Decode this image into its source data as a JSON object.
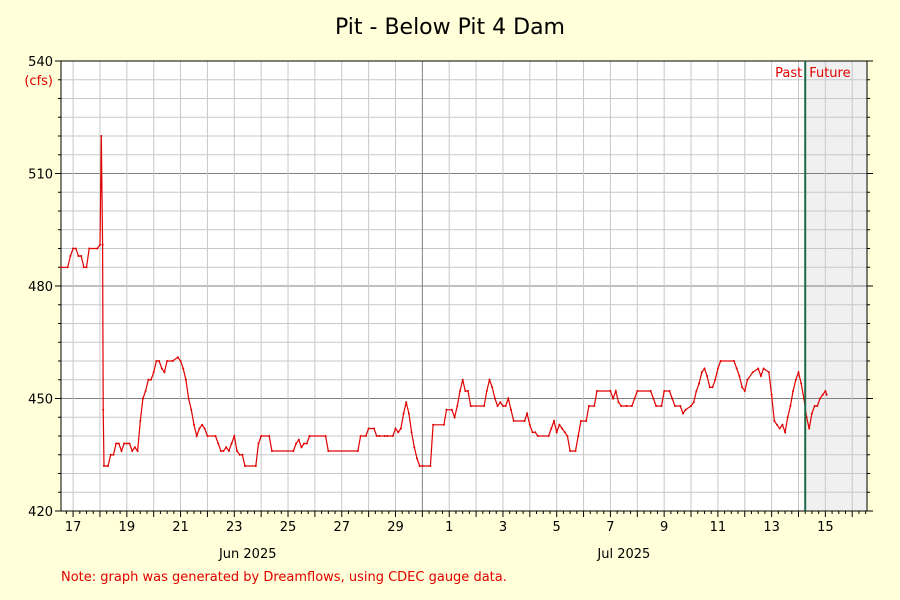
{
  "chart_data": {
    "type": "line",
    "title": "Pit - Below Pit 4 Dam",
    "ylabel": "(cfs)",
    "ylim": [
      420,
      540
    ],
    "yticks": [
      420,
      450,
      480,
      510,
      540
    ],
    "x_unit": "days since 2025-06-16 00:00",
    "xlim": [
      16.55,
      46.55
    ],
    "day_ticks": [
      {
        "label": "17",
        "x": 17
      },
      {
        "label": "19",
        "x": 19
      },
      {
        "label": "21",
        "x": 21
      },
      {
        "label": "23",
        "x": 23
      },
      {
        "label": "25",
        "x": 25
      },
      {
        "label": "27",
        "x": 27
      },
      {
        "label": "29",
        "x": 29
      },
      {
        "label": "1",
        "x": 31
      },
      {
        "label": "3",
        "x": 33
      },
      {
        "label": "5",
        "x": 35
      },
      {
        "label": "7",
        "x": 37
      },
      {
        "label": "9",
        "x": 39
      },
      {
        "label": "11",
        "x": 41
      },
      {
        "label": "13",
        "x": 43
      },
      {
        "label": "15",
        "x": 45
      }
    ],
    "month_labels": [
      {
        "label": "Jun 2025",
        "x": 23.5
      },
      {
        "label": "Jul 2025",
        "x": 37.5
      }
    ],
    "month_boundary_x": 30.0,
    "now_x": 44.25,
    "past_label": "Past",
    "future_label": "Future",
    "grid": true,
    "color": "#e00000",
    "series": [
      {
        "color": "#e00000",
        "points": [
          [
            16.55,
            485
          ],
          [
            16.8,
            485
          ],
          [
            16.9,
            488
          ],
          [
            17.0,
            490
          ],
          [
            17.1,
            490
          ],
          [
            17.2,
            488
          ],
          [
            17.3,
            488
          ],
          [
            17.4,
            485
          ],
          [
            17.5,
            485
          ],
          [
            17.6,
            490
          ],
          [
            17.9,
            490
          ],
          [
            18.0,
            491
          ],
          [
            18.05,
            520
          ],
          [
            18.1,
            491
          ],
          [
            18.12,
            447
          ],
          [
            18.15,
            432
          ],
          [
            18.3,
            432
          ],
          [
            18.4,
            435
          ],
          [
            18.5,
            435
          ],
          [
            18.6,
            438
          ],
          [
            18.7,
            438
          ],
          [
            18.8,
            436
          ],
          [
            18.9,
            438
          ],
          [
            19.0,
            438
          ],
          [
            19.1,
            438
          ],
          [
            19.2,
            436
          ],
          [
            19.3,
            437
          ],
          [
            19.4,
            436
          ],
          [
            19.5,
            444
          ],
          [
            19.6,
            450
          ],
          [
            19.7,
            452
          ],
          [
            19.8,
            455
          ],
          [
            19.9,
            455
          ],
          [
            20.0,
            457
          ],
          [
            20.1,
            460
          ],
          [
            20.2,
            460
          ],
          [
            20.3,
            458
          ],
          [
            20.4,
            457
          ],
          [
            20.5,
            460
          ],
          [
            20.7,
            460
          ],
          [
            20.9,
            461
          ],
          [
            21.0,
            460
          ],
          [
            21.1,
            458
          ],
          [
            21.2,
            455
          ],
          [
            21.3,
            450
          ],
          [
            21.4,
            447
          ],
          [
            21.5,
            443
          ],
          [
            21.6,
            440
          ],
          [
            21.7,
            442
          ],
          [
            21.8,
            443
          ],
          [
            21.9,
            442
          ],
          [
            22.0,
            440
          ],
          [
            22.3,
            440
          ],
          [
            22.4,
            438
          ],
          [
            22.5,
            436
          ],
          [
            22.6,
            436
          ],
          [
            22.7,
            437
          ],
          [
            22.8,
            436
          ],
          [
            22.9,
            438
          ],
          [
            23.0,
            440
          ],
          [
            23.1,
            436
          ],
          [
            23.2,
            435
          ],
          [
            23.3,
            435
          ],
          [
            23.4,
            432
          ],
          [
            23.8,
            432
          ],
          [
            23.9,
            438
          ],
          [
            24.0,
            440
          ],
          [
            24.3,
            440
          ],
          [
            24.4,
            436
          ],
          [
            25.2,
            436
          ],
          [
            25.3,
            438
          ],
          [
            25.4,
            439
          ],
          [
            25.5,
            437
          ],
          [
            25.6,
            438
          ],
          [
            25.7,
            438
          ],
          [
            25.8,
            440
          ],
          [
            26.4,
            440
          ],
          [
            26.5,
            436
          ],
          [
            27.6,
            436
          ],
          [
            27.7,
            440
          ],
          [
            27.9,
            440
          ],
          [
            28.0,
            442
          ],
          [
            28.2,
            442
          ],
          [
            28.3,
            440
          ],
          [
            28.4,
            440
          ],
          [
            28.6,
            440
          ],
          [
            28.7,
            440
          ],
          [
            28.9,
            440
          ],
          [
            29.0,
            442
          ],
          [
            29.1,
            441
          ],
          [
            29.2,
            442
          ],
          [
            29.3,
            446
          ],
          [
            29.4,
            449
          ],
          [
            29.5,
            446
          ],
          [
            29.6,
            441
          ],
          [
            29.7,
            437
          ],
          [
            29.8,
            434
          ],
          [
            29.9,
            432
          ],
          [
            30.0,
            432
          ],
          [
            30.3,
            432
          ],
          [
            30.4,
            443
          ],
          [
            30.8,
            443
          ],
          [
            30.9,
            447
          ],
          [
            31.1,
            447
          ],
          [
            31.2,
            445
          ],
          [
            31.3,
            448
          ],
          [
            31.4,
            452
          ],
          [
            31.5,
            455
          ],
          [
            31.6,
            452
          ],
          [
            31.7,
            452
          ],
          [
            31.8,
            448
          ],
          [
            32.3,
            448
          ],
          [
            32.4,
            452
          ],
          [
            32.5,
            455
          ],
          [
            32.6,
            453
          ],
          [
            32.7,
            450
          ],
          [
            32.8,
            448
          ],
          [
            32.9,
            449
          ],
          [
            33.0,
            448
          ],
          [
            33.1,
            448
          ],
          [
            33.2,
            450
          ],
          [
            33.3,
            447
          ],
          [
            33.4,
            444
          ],
          [
            33.8,
            444
          ],
          [
            33.9,
            446
          ],
          [
            34.0,
            443
          ],
          [
            34.1,
            441
          ],
          [
            34.2,
            441
          ],
          [
            34.3,
            440
          ],
          [
            34.7,
            440
          ],
          [
            34.8,
            442
          ],
          [
            34.9,
            444
          ],
          [
            35.0,
            441
          ],
          [
            35.1,
            443
          ],
          [
            35.2,
            442
          ],
          [
            35.3,
            441
          ],
          [
            35.4,
            440
          ],
          [
            35.5,
            436
          ],
          [
            35.7,
            436
          ],
          [
            35.8,
            440
          ],
          [
            35.9,
            444
          ],
          [
            36.1,
            444
          ],
          [
            36.2,
            448
          ],
          [
            36.4,
            448
          ],
          [
            36.5,
            452
          ],
          [
            37.0,
            452
          ],
          [
            37.1,
            450
          ],
          [
            37.2,
            452
          ],
          [
            37.3,
            449
          ],
          [
            37.4,
            448
          ],
          [
            37.6,
            448
          ],
          [
            37.8,
            448
          ],
          [
            37.9,
            450
          ],
          [
            38.0,
            452
          ],
          [
            38.5,
            452
          ],
          [
            38.6,
            450
          ],
          [
            38.7,
            448
          ],
          [
            38.9,
            448
          ],
          [
            39.0,
            452
          ],
          [
            39.2,
            452
          ],
          [
            39.3,
            450
          ],
          [
            39.4,
            448
          ],
          [
            39.6,
            448
          ],
          [
            39.7,
            446
          ],
          [
            39.8,
            447
          ],
          [
            40.0,
            448
          ],
          [
            40.1,
            449
          ],
          [
            40.2,
            452
          ],
          [
            40.3,
            454
          ],
          [
            40.4,
            457
          ],
          [
            40.5,
            458
          ],
          [
            40.6,
            456
          ],
          [
            40.7,
            453
          ],
          [
            40.8,
            453
          ],
          [
            40.9,
            455
          ],
          [
            41.0,
            458
          ],
          [
            41.1,
            460
          ],
          [
            41.6,
            460
          ],
          [
            41.7,
            458
          ],
          [
            41.8,
            456
          ],
          [
            41.9,
            453
          ],
          [
            42.0,
            452
          ],
          [
            42.1,
            455
          ],
          [
            42.3,
            457
          ],
          [
            42.5,
            458
          ],
          [
            42.6,
            456
          ],
          [
            42.7,
            458
          ],
          [
            42.9,
            457
          ],
          [
            43.0,
            451
          ],
          [
            43.1,
            444
          ],
          [
            43.2,
            443
          ],
          [
            43.3,
            442
          ],
          [
            43.4,
            443
          ],
          [
            43.5,
            441
          ],
          [
            43.6,
            445
          ],
          [
            43.7,
            448
          ],
          [
            43.8,
            452
          ],
          [
            43.9,
            455
          ],
          [
            44.0,
            457
          ],
          [
            44.1,
            454
          ],
          [
            44.2,
            450
          ],
          [
            44.3,
            445
          ],
          [
            44.4,
            442
          ],
          [
            44.5,
            446
          ],
          [
            44.6,
            448
          ],
          [
            44.7,
            448
          ],
          [
            44.8,
            450
          ],
          [
            44.9,
            451
          ],
          [
            45.0,
            452
          ],
          [
            45.05,
            451
          ]
        ]
      }
    ]
  },
  "note": "Note: graph was generated by Dreamflows, using CDEC gauge data.",
  "colors": {
    "background": "#ffffd9",
    "plot_background": "#ffffff",
    "future_background": "#f0f0f0",
    "line": "#e00000",
    "now_line": "#1f6b47",
    "grid_minor": "#c8c8c8",
    "grid_major": "#808080"
  }
}
